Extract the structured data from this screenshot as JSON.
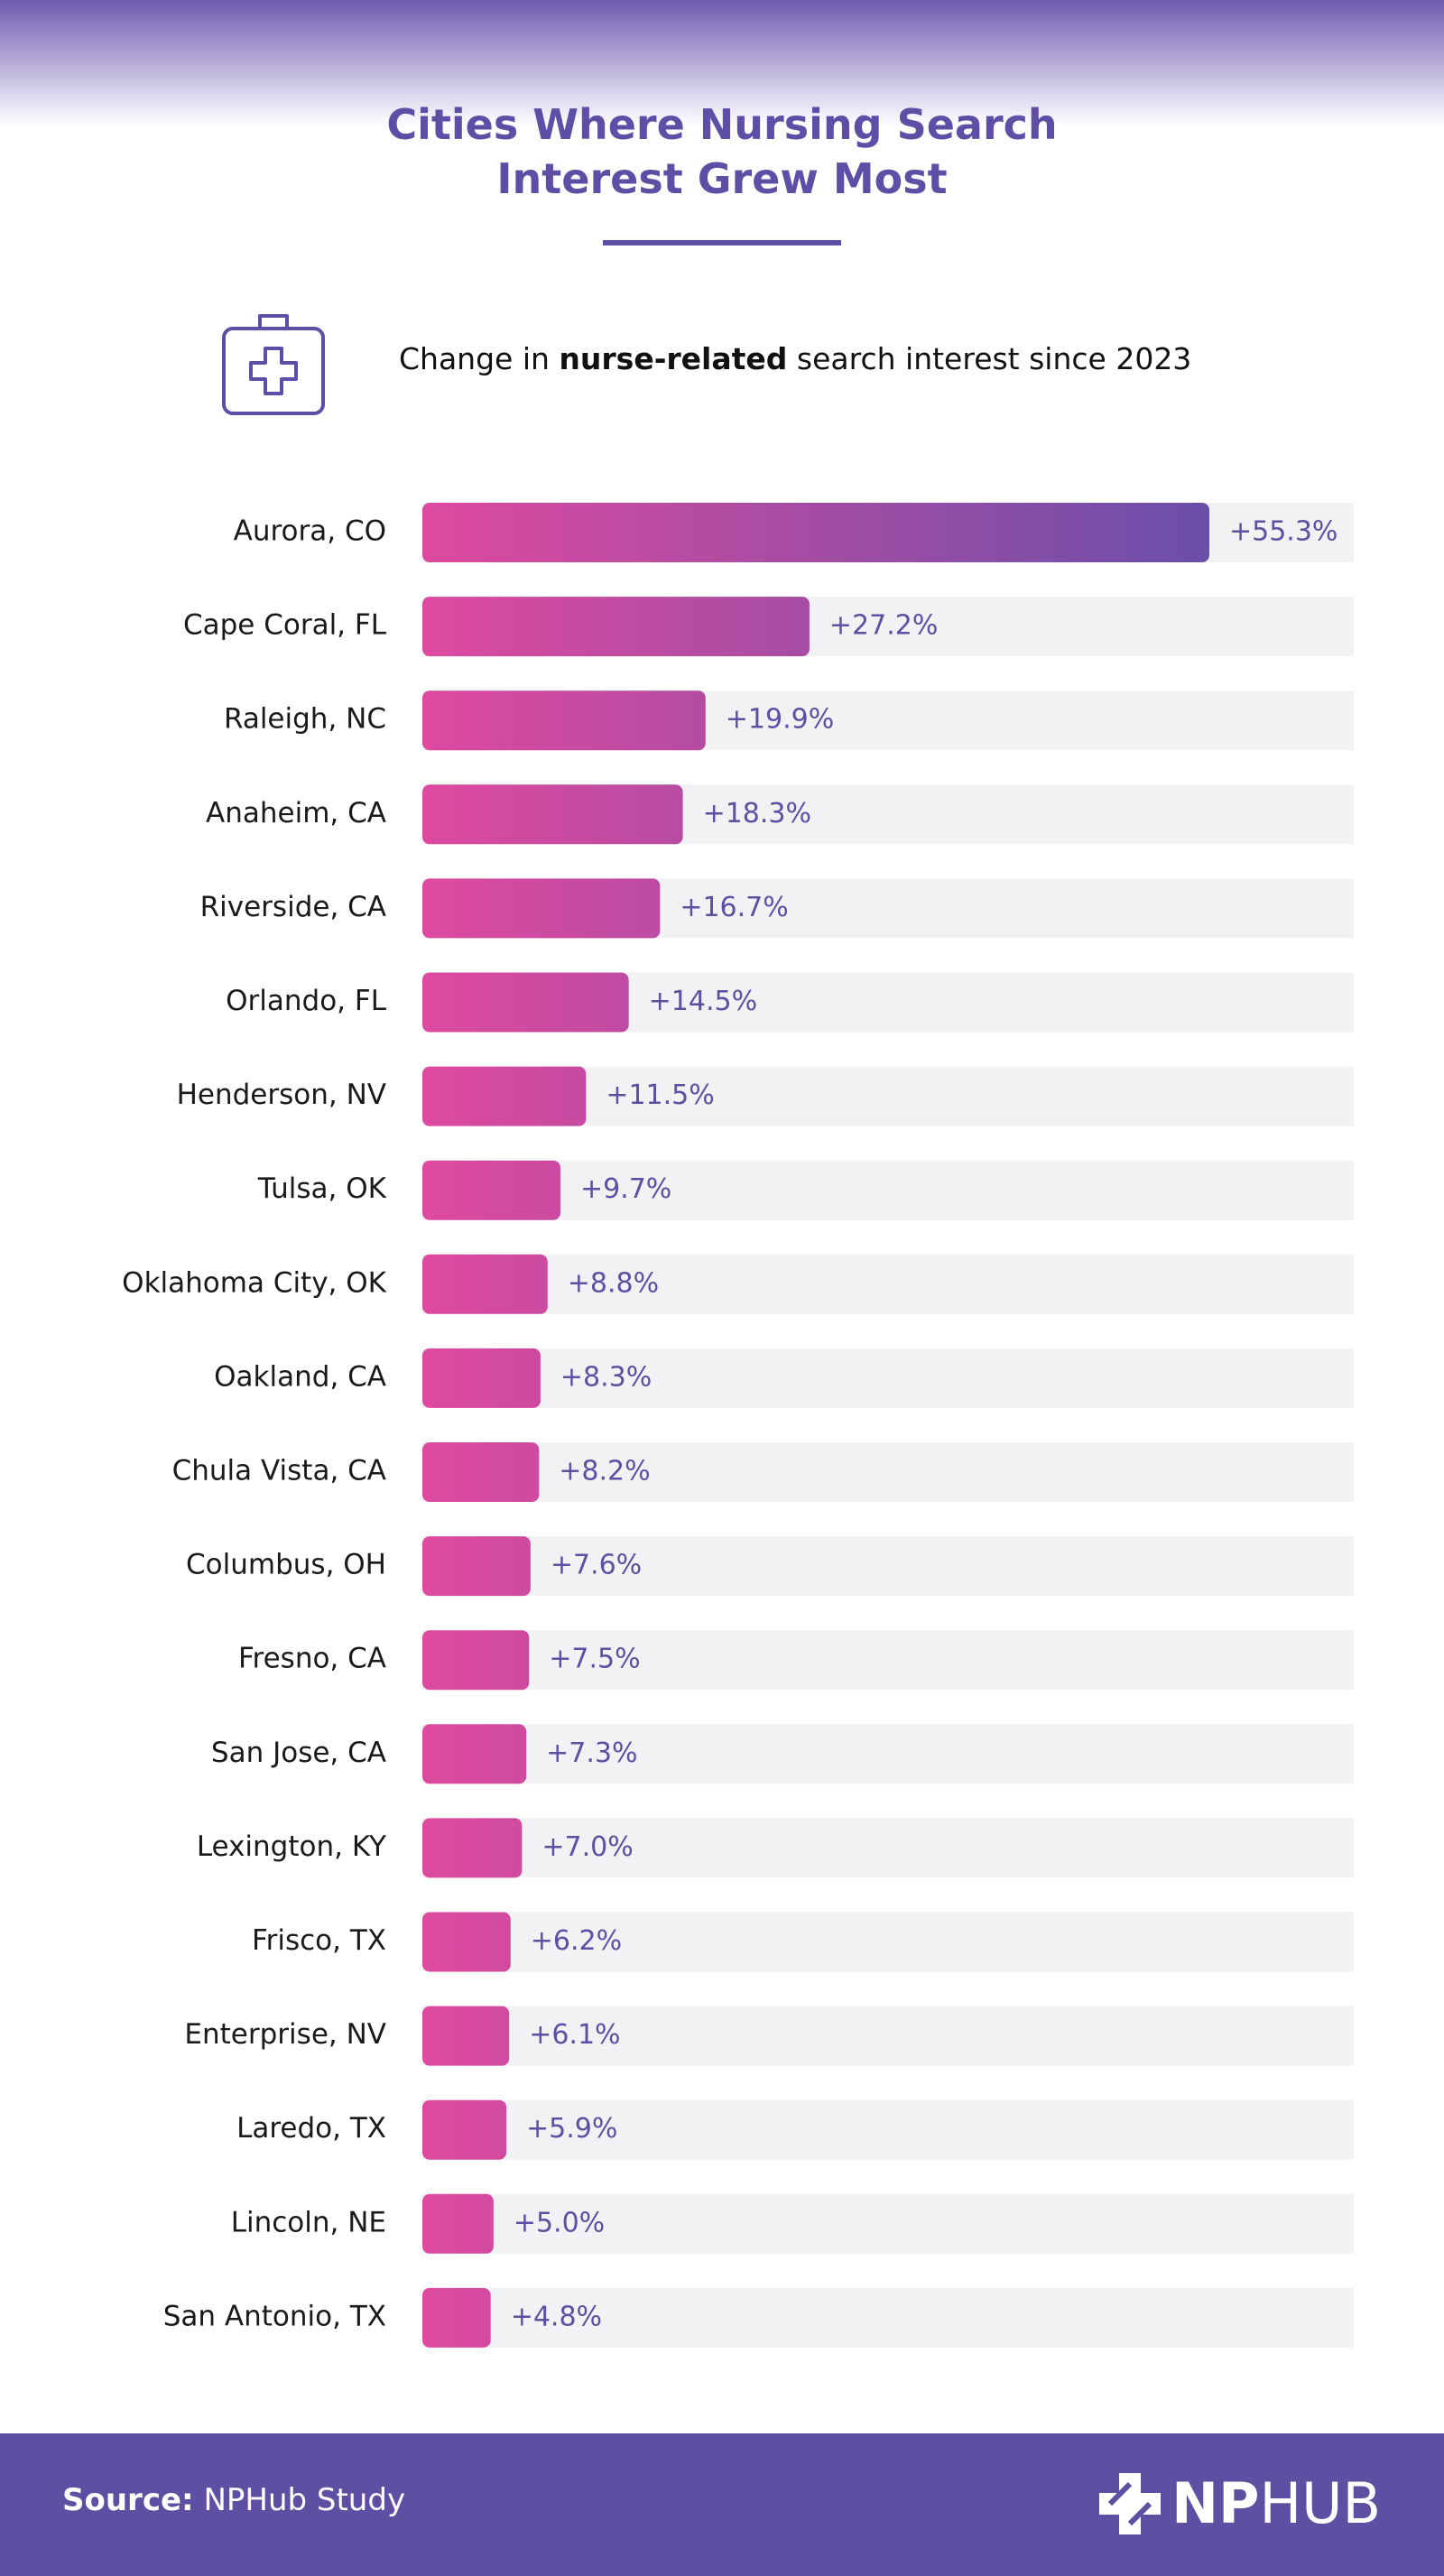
{
  "chart_data": {
    "type": "bar",
    "title": "Cities Where Nursing Search Interest Grew Most",
    "subtitle": {
      "before": "Change in ",
      "bold": "nurse-related",
      "after": " search interest since 2023"
    },
    "categories": [
      "Aurora, CO",
      "Cape Coral, FL",
      "Raleigh, NC",
      "Anaheim, CA",
      "Riverside, CA",
      "Orlando, FL",
      "Henderson, NV",
      "Tulsa, OK",
      "Oklahoma City, OK",
      "Oakland, CA",
      "Chula Vista, CA",
      "Columbus, OH",
      "Fresno, CA",
      "San Jose, CA",
      "Lexington, KY",
      "Frisco, TX",
      "Enterprise, NV",
      "Laredo, TX",
      "Lincoln, NE",
      "San Antonio, TX"
    ],
    "values": [
      55.3,
      27.2,
      19.9,
      18.3,
      16.7,
      14.5,
      11.5,
      9.7,
      8.8,
      8.3,
      8.2,
      7.6,
      7.5,
      7.3,
      7.0,
      6.2,
      6.1,
      5.9,
      5.0,
      4.8
    ],
    "value_labels": [
      "+55.3%",
      "+27.2%",
      "+19.9%",
      "+18.3%",
      "+16.7%",
      "+14.5%",
      "+11.5%",
      "+9.7%",
      "+8.8%",
      "+8.3%",
      "+8.2%",
      "+7.6%",
      "+7.5%",
      "+7.3%",
      "+7.0%",
      "+6.2%",
      "+6.1%",
      "+5.9%",
      "+5.0%",
      "+4.8%"
    ],
    "colors": [
      "#de4a9f",
      "#6a4fa9"
    ]
  },
  "footer": {
    "source_label": "Source:",
    "source": "NPHub Study",
    "logo_bold": "NP",
    "logo_light": "HUB"
  }
}
